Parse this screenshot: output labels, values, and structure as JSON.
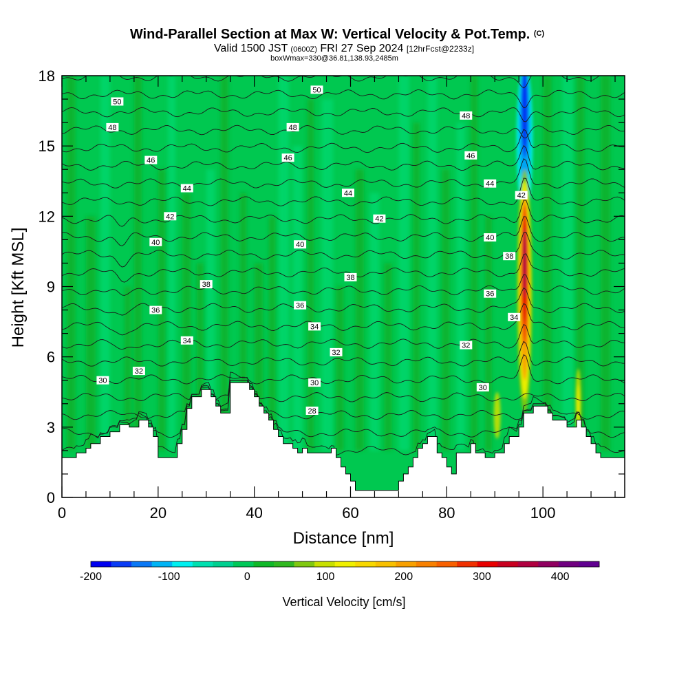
{
  "chart_data": {
    "type": "heatmap",
    "title": "Wind-Parallel Section at Max W: Vertical Velocity & Pot.Temp.",
    "title_mark": "(C)",
    "subtitle_parts": [
      "Valid 1500 JST",
      "(0600Z)",
      "FRI 27 Sep 2024",
      "[12hrFcst@2233z]"
    ],
    "subtitle2": "boxWmax=330@36.81,138.93,2485m",
    "xlabel": "Distance [nm]",
    "ylabel": "Height [Kft MSL]",
    "xlim": [
      0,
      117
    ],
    "ylim": [
      0,
      18
    ],
    "x_ticks": [
      0,
      20,
      40,
      60,
      80,
      100
    ],
    "y_ticks": [
      0,
      3,
      6,
      9,
      12,
      15,
      18
    ],
    "x_tick_labels": [
      "0",
      "20",
      "40",
      "60",
      "80",
      "100"
    ],
    "y_tick_labels": [
      "0",
      "3",
      "6",
      "9",
      "12",
      "15",
      "18"
    ],
    "colorbar": {
      "label": "Vertical Velocity [cm/s]",
      "range": [
        -200,
        450
      ],
      "tick_values": [
        -200,
        -100,
        0,
        100,
        200,
        300,
        400
      ],
      "tick_labels": [
        "-200",
        "-100",
        "0",
        "100",
        "200",
        "300",
        "400"
      ],
      "colors": [
        "#0000f0",
        "#0a3cf5",
        "#0a78f5",
        "#00b4f5",
        "#00f0f0",
        "#00e0b0",
        "#00d090",
        "#00c858",
        "#10b828",
        "#30b820",
        "#80c810",
        "#c8e000",
        "#f0f000",
        "#f8d800",
        "#f8c000",
        "#f8a000",
        "#f88000",
        "#f86000",
        "#f03000",
        "#e80000",
        "#c80020",
        "#b00040",
        "#900060",
        "#700080",
        "#600090"
      ]
    },
    "theta_contours": [
      {
        "theta": 28,
        "label_x": 52,
        "label_y": 3.7
      },
      {
        "theta": 30,
        "label_x": 52.5,
        "label_y": 4.9
      },
      {
        "theta": 30,
        "label_x": 8.5,
        "label_y": 5.0
      },
      {
        "theta": 30,
        "label_x": 87.5,
        "label_y": 4.7
      },
      {
        "theta": 32,
        "label_x": 16,
        "label_y": 5.4
      },
      {
        "theta": 32,
        "label_x": 57,
        "label_y": 6.2
      },
      {
        "theta": 32,
        "label_x": 84,
        "label_y": 6.5
      },
      {
        "theta": 34,
        "label_x": 26,
        "label_y": 6.7
      },
      {
        "theta": 34,
        "label_x": 52.5,
        "label_y": 7.3
      },
      {
        "theta": 34,
        "label_x": 94,
        "label_y": 7.7
      },
      {
        "theta": 36,
        "label_x": 19.5,
        "label_y": 8.0
      },
      {
        "theta": 36,
        "label_x": 49.5,
        "label_y": 8.2
      },
      {
        "theta": 36,
        "label_x": 89,
        "label_y": 8.7
      },
      {
        "theta": 38,
        "label_x": 30,
        "label_y": 9.1
      },
      {
        "theta": 38,
        "label_x": 60,
        "label_y": 9.4
      },
      {
        "theta": 38,
        "label_x": 93,
        "label_y": 10.3
      },
      {
        "theta": 40,
        "label_x": 19.5,
        "label_y": 10.9
      },
      {
        "theta": 40,
        "label_x": 49.5,
        "label_y": 10.8
      },
      {
        "theta": 40,
        "label_x": 89,
        "label_y": 11.1
      },
      {
        "theta": 42,
        "label_x": 22.5,
        "label_y": 12.0
      },
      {
        "theta": 42,
        "label_x": 66,
        "label_y": 11.9
      },
      {
        "theta": 42,
        "label_x": 95.5,
        "label_y": 12.9
      },
      {
        "theta": 44,
        "label_x": 26,
        "label_y": 13.2
      },
      {
        "theta": 44,
        "label_x": 59.5,
        "label_y": 13.0
      },
      {
        "theta": 44,
        "label_x": 89,
        "label_y": 13.4
      },
      {
        "theta": 46,
        "label_x": 18.5,
        "label_y": 14.4
      },
      {
        "theta": 46,
        "label_x": 47,
        "label_y": 14.5
      },
      {
        "theta": 46,
        "label_x": 85,
        "label_y": 14.6
      },
      {
        "theta": 48,
        "label_x": 10.5,
        "label_y": 15.8
      },
      {
        "theta": 48,
        "label_x": 48,
        "label_y": 15.8
      },
      {
        "theta": 48,
        "label_x": 84,
        "label_y": 16.3
      },
      {
        "theta": 50,
        "label_x": 11.5,
        "label_y": 16.9
      },
      {
        "theta": 50,
        "label_x": 53,
        "label_y": 17.4
      }
    ],
    "terrain": {
      "x": [
        0,
        3,
        3,
        5,
        5,
        6,
        6,
        8,
        8,
        10,
        10,
        12,
        12,
        14,
        14,
        16,
        16,
        18,
        18,
        19,
        19,
        20,
        20,
        24,
        24,
        25,
        25,
        26,
        26,
        27,
        27,
        29,
        29,
        31,
        31,
        32,
        32,
        33,
        33,
        35,
        35,
        37,
        37,
        39,
        39,
        40,
        40,
        41,
        41,
        42,
        42,
        43,
        43,
        44,
        44,
        45,
        45,
        46,
        46,
        48,
        48,
        49,
        49,
        50,
        50,
        51,
        51,
        56,
        56,
        57,
        57,
        58,
        58,
        59,
        59,
        60,
        60,
        61,
        61,
        62,
        62,
        64,
        64,
        65,
        65,
        67,
        67,
        69,
        69,
        70,
        70,
        71,
        71,
        72,
        72,
        73,
        73,
        74,
        74,
        75,
        75,
        76,
        76,
        77,
        77,
        78,
        78,
        79,
        79,
        80,
        80,
        81,
        81,
        82,
        82,
        84,
        84,
        85,
        85,
        86,
        86,
        88,
        88,
        90,
        90,
        92,
        92,
        93,
        93,
        95,
        95,
        96,
        96,
        98,
        98,
        100,
        100,
        101,
        101,
        102,
        102,
        105,
        105,
        107,
        107,
        108,
        108,
        109,
        109,
        110,
        110,
        111,
        111,
        112,
        112,
        117
      ],
      "y": [
        1.7,
        1.7,
        1.9,
        1.9,
        2.1,
        2.1,
        2.3,
        2.3,
        2.6,
        2.6,
        2.8,
        2.8,
        3.1,
        3.1,
        3.0,
        3.0,
        3.3,
        3.3,
        3.0,
        3.0,
        2.6,
        2.6,
        1.7,
        1.7,
        2.3,
        2.3,
        2.9,
        2.9,
        3.8,
        3.8,
        4.3,
        4.3,
        4.6,
        4.6,
        4.3,
        4.3,
        3.9,
        3.9,
        3.6,
        3.6,
        4.9,
        4.9,
        4.9,
        4.9,
        4.6,
        4.6,
        4.3,
        4.3,
        3.9,
        3.9,
        3.6,
        3.6,
        3.3,
        3.3,
        2.9,
        2.9,
        2.6,
        2.6,
        2.3,
        2.3,
        2.1,
        2.1,
        1.9,
        1.9,
        2.1,
        2.1,
        1.9,
        1.9,
        2.1,
        2.1,
        1.7,
        1.7,
        1.3,
        1.3,
        1.0,
        1.0,
        0.7,
        0.7,
        0.3,
        0.3,
        0.3,
        0.3,
        0.3,
        0.3,
        0.3,
        0.3,
        0.3,
        0.3,
        0.3,
        0.3,
        0.7,
        0.7,
        1.0,
        1.0,
        1.3,
        1.3,
        1.7,
        1.7,
        2.1,
        2.1,
        2.3,
        2.3,
        2.6,
        2.6,
        2.6,
        2.6,
        1.9,
        1.9,
        1.7,
        1.7,
        1.3,
        1.3,
        1.0,
        1.0,
        1.9,
        1.9,
        1.9,
        1.9,
        2.3,
        2.3,
        1.9,
        1.9,
        1.7,
        1.7,
        1.9,
        1.9,
        2.3,
        2.3,
        2.6,
        2.6,
        3.0,
        3.0,
        3.6,
        3.6,
        3.9,
        3.9,
        3.9,
        3.9,
        3.6,
        3.6,
        3.3,
        3.3,
        3.0,
        3.0,
        3.3,
        3.3,
        3.0,
        3.0,
        2.6,
        2.6,
        2.3,
        2.3,
        1.9,
        1.9,
        1.7,
        1.7
      ]
    }
  }
}
